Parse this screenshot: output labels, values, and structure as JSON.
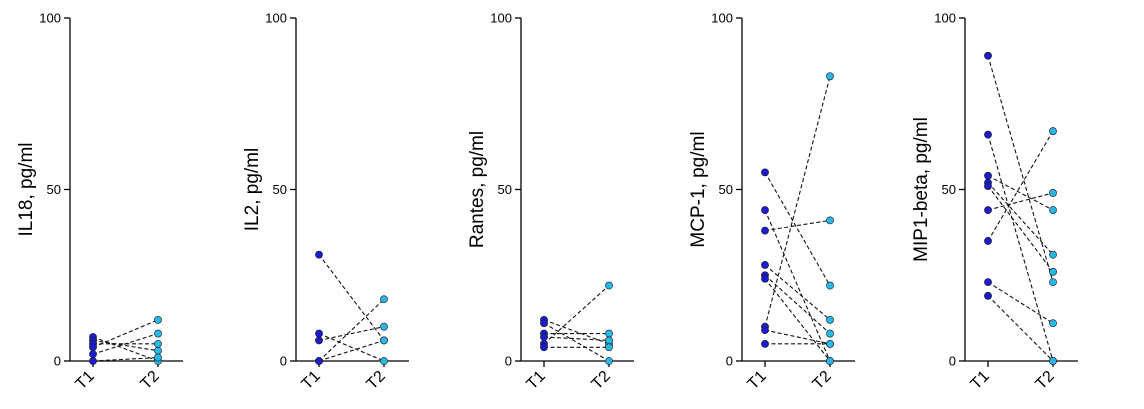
{
  "colors": {
    "t1_point": "#1c1ccc",
    "t2_point": "#29b6e8",
    "axis": "#000000",
    "connector": "#111111"
  },
  "chart_data": [
    {
      "type": "scatter",
      "title": "",
      "xlabel": "",
      "ylabel": "IL18, pg/ml",
      "categories": [
        "T1",
        "T2"
      ],
      "ylim": [
        0,
        100
      ],
      "yticks": [
        0,
        50,
        100
      ],
      "grid": false,
      "pairs": [
        [
          7,
          0
        ],
        [
          6,
          3
        ],
        [
          5,
          5
        ],
        [
          4,
          12
        ],
        [
          2,
          8
        ],
        [
          0,
          1
        ]
      ]
    },
    {
      "type": "scatter",
      "title": "",
      "xlabel": "",
      "ylabel": "IL2, pg/ml",
      "categories": [
        "T1",
        "T2"
      ],
      "ylim": [
        0,
        100
      ],
      "yticks": [
        0,
        50,
        100
      ],
      "grid": false,
      "pairs": [
        [
          31,
          6
        ],
        [
          8,
          0
        ],
        [
          6,
          10
        ],
        [
          0,
          18
        ],
        [
          0,
          6
        ]
      ]
    },
    {
      "type": "scatter",
      "title": "",
      "xlabel": "",
      "ylabel": "Rantes, pg/ml",
      "categories": [
        "T1",
        "T2"
      ],
      "ylim": [
        0,
        100
      ],
      "yticks": [
        0,
        50,
        100
      ],
      "grid": false,
      "pairs": [
        [
          12,
          5
        ],
        [
          11,
          0
        ],
        [
          8,
          8
        ],
        [
          7,
          6
        ],
        [
          5,
          22
        ],
        [
          4,
          4
        ]
      ]
    },
    {
      "type": "scatter",
      "title": "",
      "xlabel": "",
      "ylabel": "MCP-1, pg/ml",
      "categories": [
        "T1",
        "T2"
      ],
      "ylim": [
        0,
        100
      ],
      "yticks": [
        0,
        50,
        100
      ],
      "grid": false,
      "pairs": [
        [
          55,
          22
        ],
        [
          44,
          0
        ],
        [
          38,
          41
        ],
        [
          28,
          12
        ],
        [
          25,
          8
        ],
        [
          24,
          0
        ],
        [
          10,
          83
        ],
        [
          9,
          5
        ],
        [
          5,
          5
        ]
      ]
    },
    {
      "type": "scatter",
      "title": "",
      "xlabel": "",
      "ylabel": "MIP1-beta, pg/ml",
      "categories": [
        "T1",
        "T2"
      ],
      "ylim": [
        0,
        100
      ],
      "yticks": [
        0,
        50,
        100
      ],
      "grid": false,
      "pairs": [
        [
          89,
          23
        ],
        [
          66,
          0
        ],
        [
          54,
          44
        ],
        [
          52,
          31
        ],
        [
          51,
          26
        ],
        [
          44,
          49
        ],
        [
          35,
          67
        ],
        [
          23,
          11
        ],
        [
          19,
          0
        ]
      ]
    }
  ]
}
